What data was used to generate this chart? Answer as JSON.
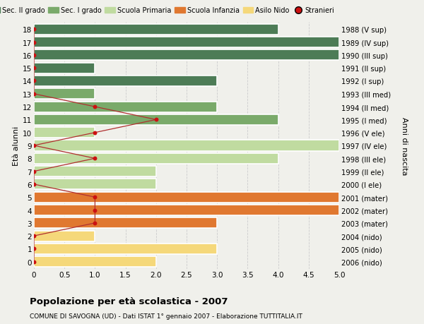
{
  "ages": [
    18,
    17,
    16,
    15,
    14,
    13,
    12,
    11,
    10,
    9,
    8,
    7,
    6,
    5,
    4,
    3,
    2,
    1,
    0
  ],
  "years": [
    "1988 (V sup)",
    "1989 (IV sup)",
    "1990 (III sup)",
    "1991 (II sup)",
    "1992 (I sup)",
    "1993 (III med)",
    "1994 (II med)",
    "1995 (I med)",
    "1996 (V ele)",
    "1997 (IV ele)",
    "1998 (III ele)",
    "1999 (II ele)",
    "2000 (I ele)",
    "2001 (mater)",
    "2002 (mater)",
    "2003 (mater)",
    "2004 (nido)",
    "2005 (nido)",
    "2006 (nido)"
  ],
  "bar_values": [
    4,
    5,
    5,
    1,
    3,
    1,
    3,
    4,
    1,
    5,
    4,
    2,
    2,
    5,
    5,
    3,
    1,
    3,
    2
  ],
  "bar_colors": [
    "#4d7c56",
    "#4d7c56",
    "#4d7c56",
    "#4d7c56",
    "#4d7c56",
    "#7aaa6a",
    "#7aaa6a",
    "#7aaa6a",
    "#c0dba0",
    "#c0dba0",
    "#c0dba0",
    "#c0dba0",
    "#c0dba0",
    "#e07830",
    "#e07830",
    "#e07830",
    "#f5d87a",
    "#f5d87a",
    "#f5d87a"
  ],
  "stranieri_values": [
    0,
    0,
    0,
    0,
    0,
    0,
    1,
    2,
    1,
    0,
    1,
    0,
    0,
    1,
    1,
    1,
    0,
    0,
    0
  ],
  "legend_labels": [
    "Sec. II grado",
    "Sec. I grado",
    "Scuola Primaria",
    "Scuola Infanzia",
    "Asilo Nido",
    "Stranieri"
  ],
  "legend_colors": [
    "#4d7c56",
    "#7aaa6a",
    "#c0dba0",
    "#e07830",
    "#f5d87a",
    "#cc1111"
  ],
  "title": "Popolazione per età scolastica - 2007",
  "subtitle": "COMUNE DI SAVOGNA (UD) - Dati ISTAT 1° gennaio 2007 - Elaborazione TUTTITALIA.IT",
  "ylabel_left": "Età alunni",
  "ylabel_right": "Anni di nascita",
  "xlim": [
    0,
    5.0
  ],
  "background_color": "#f0f0eb",
  "grid_color": "#cccccc",
  "bar_height": 0.82,
  "stranieri_line_color": "#b03030",
  "stranieri_dot_color": "#cc1111"
}
